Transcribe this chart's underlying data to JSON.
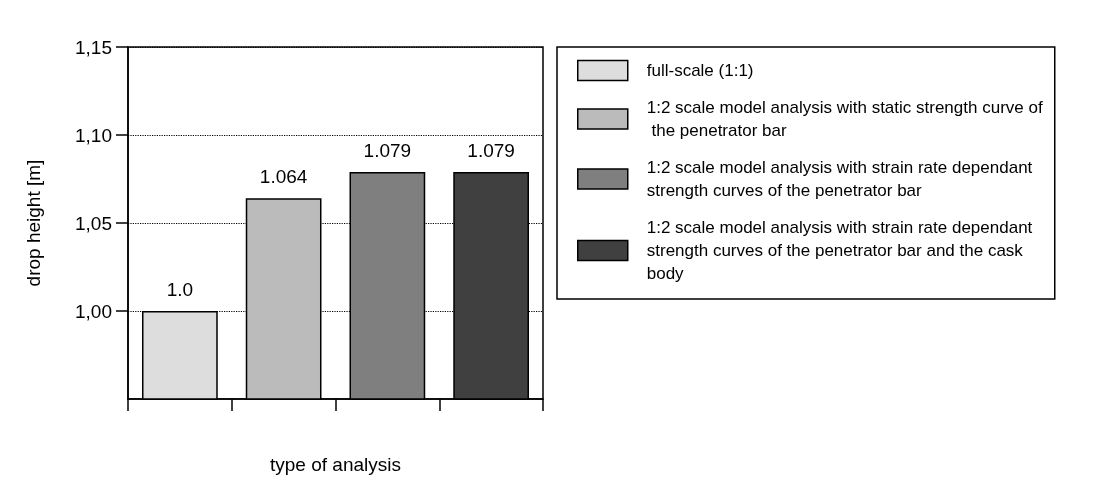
{
  "chart_data": {
    "type": "bar",
    "xlabel": "type of analysis",
    "ylabel": "drop height [m]",
    "categories": [
      null,
      null,
      null,
      null
    ],
    "series": [
      {
        "name": "full-scale (1:1)",
        "color": "#dddddd",
        "values": [
          1.0,
          null,
          null,
          null
        ],
        "value_labels": [
          "1.0",
          null,
          null,
          null
        ]
      },
      {
        "name": "1:2 scale model analysis with static strength curve of the penetrator bar",
        "color": "#bbbbbb",
        "values": [
          null,
          1.064,
          null,
          null
        ]
      },
      {
        "name": "1:2 scale model analysis with strain rate dependant strength curves of the penetrator bar",
        "color": "#7f7f7f",
        "values": [
          null,
          null,
          1.079,
          null
        ]
      },
      {
        "name": "1:2 scale model analysis with strain rate dependant strength curves of the penetrator bar and the cask body",
        "color": "#404040",
        "values": [
          null,
          null,
          null,
          1.079
        ]
      }
    ],
    "ylim": [
      0.95,
      1.15
    ],
    "yticks": [
      {
        "value": 1.0,
        "label": "1,00"
      },
      {
        "value": 1.05,
        "label": "1,05"
      },
      {
        "value": 1.1,
        "label": "1,10"
      },
      {
        "value": 1.15,
        "label": "1,15"
      }
    ],
    "grid": "y",
    "legend": "right",
    "data_labels": true
  }
}
